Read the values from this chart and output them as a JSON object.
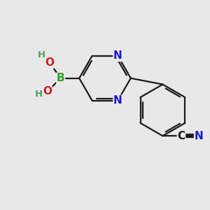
{
  "background_color": "#e8e8e8",
  "bond_color": "#1a1a1a",
  "bond_width": 1.6,
  "atom_colors": {
    "N": "#1a1acc",
    "B": "#2ca02c",
    "O": "#cc2020",
    "C": "#1a1a1a",
    "H": "#5a9a5a"
  },
  "font_size_atoms": 11,
  "font_size_small": 9.5,
  "xlim": [
    0,
    10
  ],
  "ylim": [
    0,
    10
  ]
}
